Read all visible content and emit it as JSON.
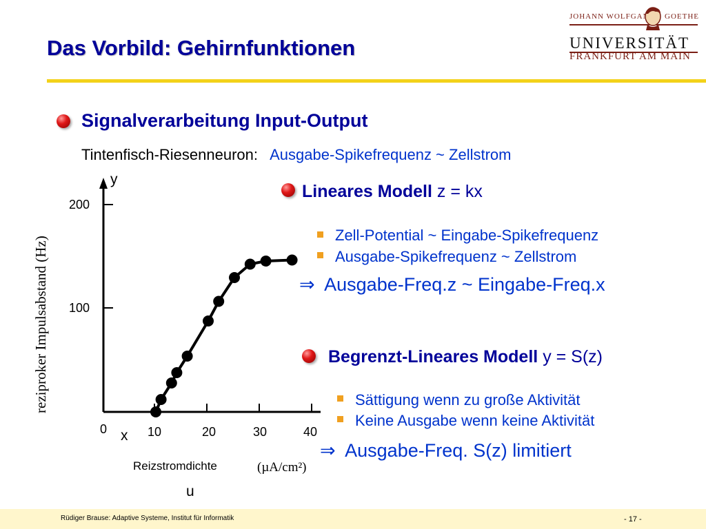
{
  "title": "Das Vorbild: Gehirnfunktionen",
  "logo": {
    "top_left": "JOHANN WOLFGANG",
    "top_right": "GOETHE",
    "main": "UNIVERSITÄT",
    "sub": "FRANKFURT AM MAIN"
  },
  "section": {
    "heading": "Signalverarbeitung Input-Output",
    "subtitle_prefix": "Tintenfisch-Riesenneuron:",
    "subtitle_rel": "Ausgabe-Spikefrequenz ~ Zellstrom"
  },
  "linear": {
    "heading_bold": "Lineares Modell",
    "formula": "z = kx",
    "bullets": [
      "Zell-Potential ~ Eingabe-Spikefrequenz",
      "Ausgabe-Spikefrequenz ~ Zellstrom"
    ],
    "arrow": "⇒",
    "implication": "Ausgabe-Freq.z ~ Eingabe-Freq.x"
  },
  "bounded": {
    "heading_bold": "Begrenzt-Lineares Modell",
    "formula": "y = S(z)",
    "bullets": [
      "Sättigung wenn zu große Aktivität",
      "Keine Ausgabe wenn keine Aktivität"
    ],
    "arrow": "⇒",
    "implication": "Ausgabe-Freq. S(z) limitiert"
  },
  "chart_data": {
    "type": "line",
    "xlabel": "Reizstromdichte",
    "xunit": "(µA/cm²)",
    "ylabel": "reziproker Impulsabstand (Hz)",
    "x_annotation": "x",
    "y_annotation": "y",
    "u_annotation": "u",
    "xlim": [
      0,
      40
    ],
    "ylim": [
      0,
      200
    ],
    "xticks": [
      "0",
      "10",
      "20",
      "30",
      "40"
    ],
    "yticks": [
      "100",
      "200"
    ],
    "series": [
      {
        "points": [
          [
            10,
            0
          ],
          [
            11,
            12
          ],
          [
            13,
            28
          ],
          [
            14,
            38
          ],
          [
            16,
            54
          ],
          [
            20,
            88
          ],
          [
            22,
            107
          ],
          [
            25,
            130
          ],
          [
            28,
            143
          ],
          [
            31,
            146
          ],
          [
            36,
            147
          ]
        ]
      }
    ]
  },
  "footer": {
    "left": "Rüdiger Brause: Adaptive Systeme, Institut für Informatik",
    "right": "- 17 -"
  },
  "colors": {
    "title": "#000099",
    "accent_rule": "#f3d21a",
    "bullet_square": "#f0a020",
    "footer_bg": "#fff6cc",
    "link_blue": "#0033cc"
  }
}
